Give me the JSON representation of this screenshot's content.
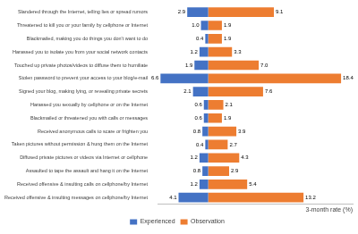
{
  "chart_data": {
    "type": "bar",
    "orientation": "horizontal",
    "grid": false,
    "legend": "bottom",
    "data_labels": true,
    "tick_labels": "y",
    "x_label": "3-month rate (%)",
    "xlim": [
      -7,
      20
    ],
    "categories": [
      "Slandered through the Internet, telling lies or spread rumors",
      "Threatened to kill you or your family by cellphone or Internet",
      "Blackmailed, making you do things you don't want to do",
      "Harassed you to isolate you from your social network contacts",
      "Touched up private photos/videos to diffuse them to humiliate",
      "Stolen password to prevent your access to your blog/e-mail",
      "Signed your blog, making lying, or revealing private secrets",
      "Harassed you sexually by cellphone or on the Internet",
      "Blackmailed or threatened you with calls or messages",
      "Received anonymous calls to scare or frighten you",
      "Taken pictures without permission & hung them on the Internet",
      "Diffused private pictures or videos via Internet or cellphone",
      "Assaulted to tape the assault and hang it on the Internet",
      "Received offensive & insulting calls on cellphone/by Internet",
      "Received offensive & insulting messages on cellphone/by Internet"
    ],
    "series": [
      {
        "name": "Experienced",
        "color": "#4472c4",
        "values": [
          2.9,
          1.0,
          0.4,
          1.2,
          1.9,
          6.6,
          2.1,
          0.6,
          0.6,
          0.8,
          0.4,
          1.2,
          0.8,
          1.2,
          4.1
        ],
        "value_labels": [
          "2.9",
          "1.0",
          "0.4",
          "1.2",
          "1.9",
          "6.6",
          "2.1",
          "0.6",
          "0.6",
          "0.8",
          "0.4",
          "1.2",
          "0.8",
          "1.2",
          "4.1"
        ]
      },
      {
        "name": "Observation",
        "color": "#ed7d31",
        "values": [
          9.1,
          1.9,
          1.9,
          3.3,
          7.0,
          18.4,
          7.6,
          2.1,
          1.9,
          3.9,
          2.7,
          4.3,
          2.9,
          5.4,
          13.2
        ],
        "value_labels": [
          "9.1",
          "1.9",
          "1.9",
          "3.3",
          "7.0",
          "18.4",
          "7.6",
          "2.1",
          "1.9",
          "3.9",
          "2.7",
          "4.3",
          "2.9",
          "5.4",
          "13.2"
        ]
      }
    ]
  }
}
